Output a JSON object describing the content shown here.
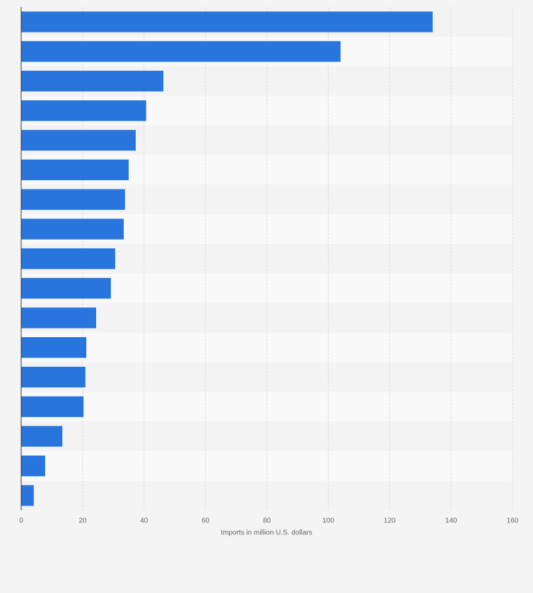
{
  "chart_data": {
    "type": "bar",
    "orientation": "horizontal",
    "x_label": "Imports in million U.S. dollars",
    "categories": [
      null,
      null,
      null,
      null,
      null,
      null,
      null,
      null,
      null,
      null,
      null,
      null,
      null,
      null,
      null,
      null,
      null
    ],
    "values": [
      134.0,
      104.0,
      46.3,
      40.7,
      37.3,
      35.0,
      33.8,
      33.4,
      30.6,
      29.2,
      24.4,
      21.2,
      20.9,
      20.3,
      13.4,
      7.8,
      4.1
    ],
    "color": "#2876dd",
    "xlim": [
      0,
      160
    ],
    "xticks": [
      0,
      20,
      40,
      60,
      80,
      100,
      120,
      140,
      160
    ],
    "grid": true
  }
}
